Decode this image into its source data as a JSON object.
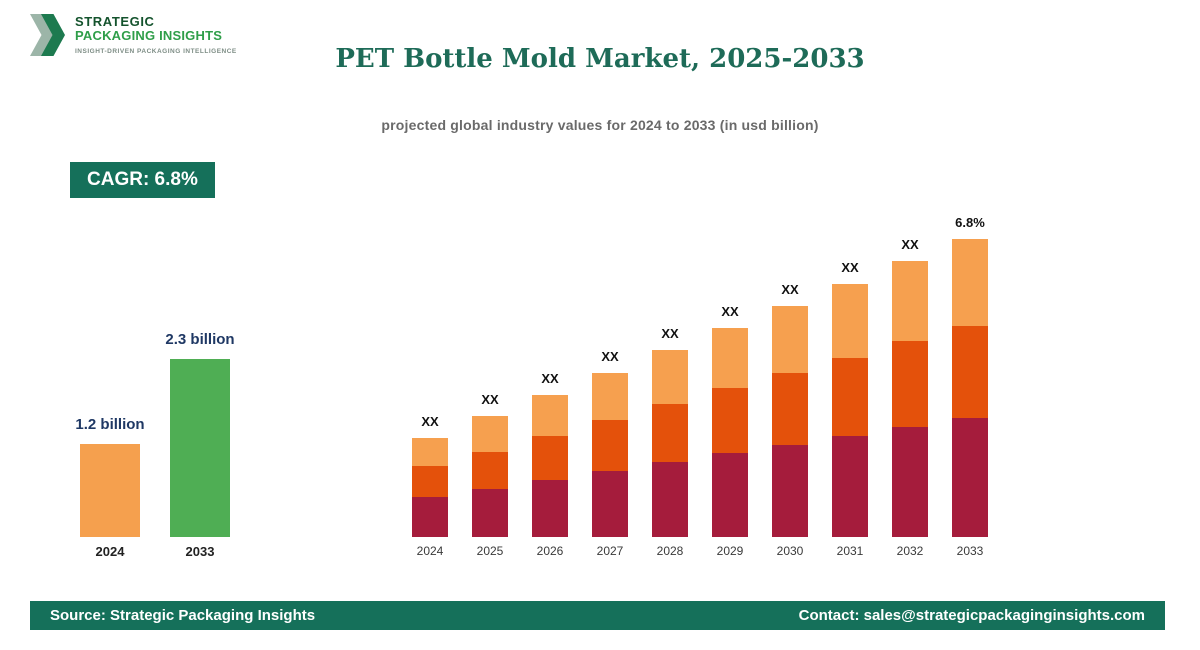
{
  "logo": {
    "line1": "STRATEGIC",
    "line2": "PACKAGING INSIGHTS",
    "tagline": "INSIGHT-DRIVEN PACKAGING INTELLIGENCE"
  },
  "header": {
    "title": "PET Bottle Mold Market, 2025-2033",
    "subtitle": "projected global industry values for 2024 to 2033 (in usd billion)"
  },
  "cagr_badge": "CAGR: 6.8%",
  "footer": {
    "source": "Source: Strategic Packaging Insights",
    "contact": "Contact: sales@strategicpackaginginsights.com"
  },
  "colors": {
    "brand_dark_green": "#15705a",
    "title_green": "#1e6b58",
    "bar_orange_2024": "#f5a04e",
    "bar_green_2033": "#4fae54",
    "segment_maroon": "#a51c3c",
    "segment_orange_red": "#e4510b",
    "segment_light_orange": "#f6a04f",
    "value_label_navy": "#1f3864"
  },
  "chart_data": [
    {
      "type": "bar",
      "title": "2024 vs 2033 market size comparison",
      "categories": [
        "2024",
        "2033"
      ],
      "values": [
        1.2,
        2.3
      ],
      "value_labels": [
        "1.2 billion",
        "2.3 billion"
      ],
      "bar_colors": [
        "#f5a04e",
        "#4fae54"
      ],
      "unit": "usd billion",
      "grid": false,
      "axes_visible": false
    },
    {
      "type": "bar",
      "stacked": true,
      "title": "PET Bottle Mold Market projected values 2024-2033",
      "categories": [
        "2024",
        "2025",
        "2026",
        "2027",
        "2028",
        "2029",
        "2030",
        "2031",
        "2032",
        "2033"
      ],
      "bar_labels": [
        "XX",
        "XX",
        "XX",
        "XX",
        "XX",
        "XX",
        "XX",
        "XX",
        "XX",
        "6.8%"
      ],
      "series": [
        {
          "name": "bottom-segment",
          "color": "#a51c3c",
          "values": [
            40,
            48,
            57,
            66,
            75,
            84,
            92,
            101,
            110,
            119
          ]
        },
        {
          "name": "middle-segment",
          "color": "#e4510b",
          "values": [
            31,
            37,
            44,
            51,
            58,
            65,
            72,
            78,
            86,
            92
          ]
        },
        {
          "name": "top-segment",
          "color": "#f6a04f",
          "values": [
            28,
            36,
            41,
            47,
            54,
            60,
            67,
            74,
            80,
            87
          ]
        }
      ],
      "units": "relative heights (actual values masked as XX in chart)",
      "grid": false,
      "axes_visible": false,
      "legend": "none"
    }
  ]
}
